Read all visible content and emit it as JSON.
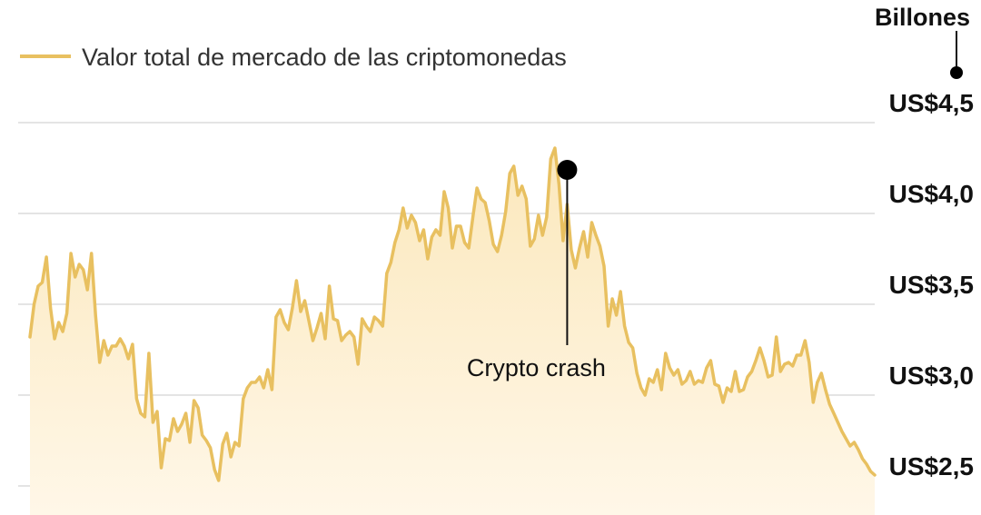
{
  "chart_data": {
    "type": "area",
    "unit_label": "Billones",
    "legend": {
      "label": "Valor total de mercado de las criptomonedas",
      "placement": "top-left"
    },
    "series": [
      {
        "name": "Valor total de mercado de las criptomonedas",
        "values": [
          3.32,
          3.5,
          3.6,
          3.62,
          3.76,
          3.48,
          3.31,
          3.4,
          3.35,
          3.45,
          3.78,
          3.65,
          3.72,
          3.69,
          3.58,
          3.78,
          3.44,
          3.18,
          3.3,
          3.22,
          3.27,
          3.27,
          3.31,
          3.27,
          3.2,
          3.28,
          2.98,
          2.9,
          2.88,
          3.23,
          2.85,
          2.91,
          2.6,
          2.76,
          2.75,
          2.87,
          2.8,
          2.84,
          2.9,
          2.74,
          2.97,
          2.93,
          2.78,
          2.75,
          2.71,
          2.59,
          2.53,
          2.73,
          2.79,
          2.66,
          2.74,
          2.72,
          2.98,
          3.04,
          3.07,
          3.07,
          3.1,
          3.04,
          3.14,
          3.03,
          3.43,
          3.47,
          3.4,
          3.36,
          3.48,
          3.63,
          3.46,
          3.52,
          3.41,
          3.3,
          3.37,
          3.45,
          3.31,
          3.6,
          3.42,
          3.41,
          3.3,
          3.33,
          3.35,
          3.32,
          3.17,
          3.42,
          3.38,
          3.35,
          3.43,
          3.41,
          3.38,
          3.67,
          3.73,
          3.84,
          3.91,
          4.03,
          3.92,
          3.99,
          3.95,
          3.85,
          3.91,
          3.75,
          3.87,
          3.91,
          3.88,
          4.12,
          4.03,
          3.81,
          3.93,
          3.93,
          3.84,
          3.81,
          3.98,
          4.14,
          4.08,
          4.06,
          3.96,
          3.83,
          3.79,
          3.88,
          4.01,
          4.22,
          4.26,
          4.1,
          4.15,
          4.08,
          3.82,
          3.86,
          3.99,
          3.88,
          3.98,
          4.3,
          4.36,
          4.16,
          3.85,
          4.05,
          3.8,
          3.7,
          3.81,
          3.9,
          3.76,
          3.95,
          3.88,
          3.82,
          3.71,
          3.38,
          3.53,
          3.44,
          3.57,
          3.38,
          3.29,
          3.26,
          3.12,
          3.04,
          3.0,
          3.09,
          3.07,
          3.14,
          3.03,
          3.23,
          3.15,
          3.11,
          3.14,
          3.06,
          3.08,
          3.13,
          3.06,
          3.08,
          3.07,
          3.15,
          3.19,
          3.06,
          3.05,
          2.96,
          3.04,
          3.02,
          3.13,
          3.02,
          3.03,
          3.1,
          3.13,
          3.19,
          3.26,
          3.19,
          3.1,
          3.11,
          3.32,
          3.13,
          3.17,
          3.18,
          3.16,
          3.22,
          3.22,
          3.3,
          3.18,
          2.96,
          3.07,
          3.12,
          3.03,
          2.95,
          2.9,
          2.85,
          2.8,
          2.76,
          2.72,
          2.74,
          2.7,
          2.65,
          2.62,
          2.58,
          2.56
        ]
      }
    ],
    "y_ticks": [
      {
        "value": 2.5,
        "label": "US$2,5"
      },
      {
        "value": 3.0,
        "label": "US$3,0"
      },
      {
        "value": 3.5,
        "label": "US$3,5"
      },
      {
        "value": 4.0,
        "label": "US$4,0"
      },
      {
        "value": 4.5,
        "label": "US$4,5"
      }
    ],
    "ylim": [
      2.5,
      4.5
    ],
    "grid": true,
    "annotations": [
      {
        "label": "Crypto crash",
        "index": 131,
        "value": 4.24
      }
    ],
    "colors": {
      "line": "#e8c060",
      "fill_top": "#fbe8bc",
      "fill_bottom": "#fff7e8",
      "grid": "#c8c8c8",
      "marker": "#000000"
    }
  }
}
